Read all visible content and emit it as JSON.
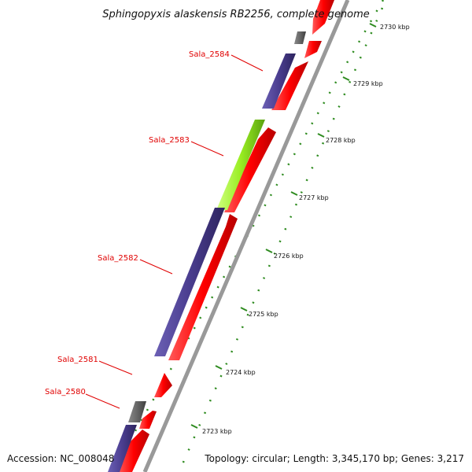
{
  "title": "Sphingopyxis alaskensis RB2256, complete genome",
  "footer": {
    "accession": "Accession: NC_008048",
    "topology": "Topology: circular; Length: 3,345,170 bp; Genes: 3,217"
  },
  "genes": [
    {
      "label": "Sala_2584"
    },
    {
      "label": "Sala_2583"
    },
    {
      "label": "Sala_2582"
    },
    {
      "label": "Sala_2581"
    },
    {
      "label": "Sala_2580"
    }
  ],
  "ticks": [
    {
      "label": "2730 kbp"
    },
    {
      "label": "2729 kbp"
    },
    {
      "label": "2728 kbp"
    },
    {
      "label": "2727 kbp"
    },
    {
      "label": "2726 kbp"
    },
    {
      "label": "2725 kbp"
    },
    {
      "label": "2724 kbp"
    },
    {
      "label": "2723 kbp"
    }
  ],
  "colors": {
    "cds": "#ff0000",
    "gene": "#4a3d8f",
    "highlight": "#99ee22",
    "other": "#666666",
    "backbone": "#999999",
    "dots": "#2e8b1f",
    "label": "#e00000"
  }
}
